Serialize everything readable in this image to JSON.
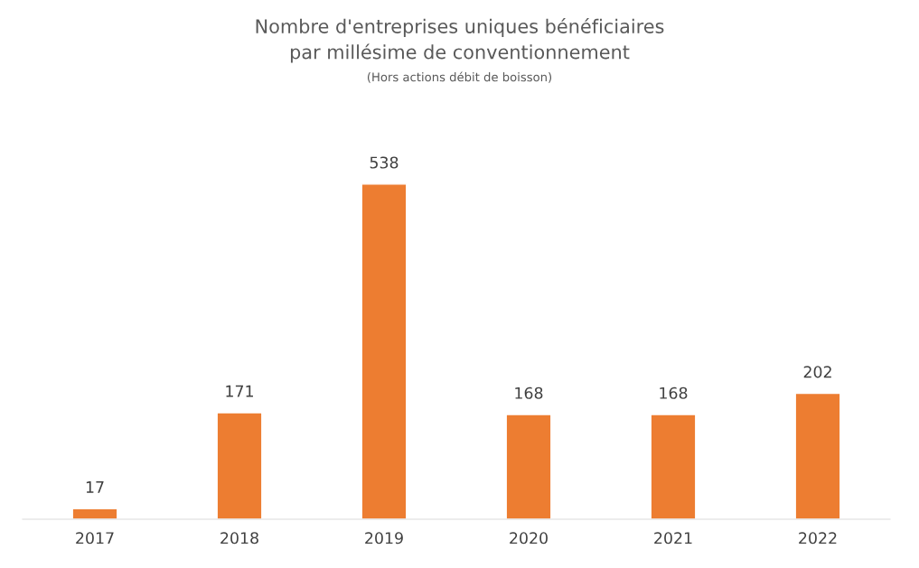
{
  "chart_data": {
    "type": "bar",
    "title": "Nombre d'entreprises uniques bénéficiaires\npar millésime de conventionnement",
    "subtitle": "(Hors actions débit de boisson)",
    "categories": [
      "2017",
      "2018",
      "2019",
      "2020",
      "2021",
      "2022"
    ],
    "values": [
      17,
      171,
      538,
      168,
      168,
      202
    ],
    "color": "#ed7d31",
    "data_labels": true,
    "grid": false,
    "legend": false
  }
}
